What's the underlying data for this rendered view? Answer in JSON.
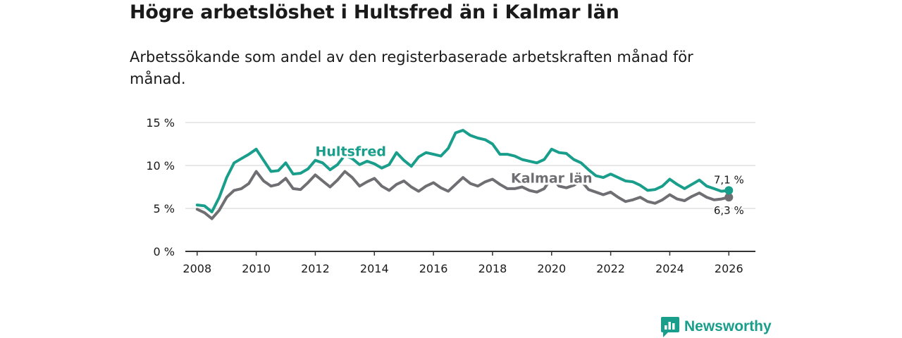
{
  "title": "Högre arbetslöshet i Hultsfred än i Kalmar län",
  "subtitle": "Arbetssökande som andel av den registerbaserade arbetskraften månad för månad.",
  "brand": {
    "name": "Newsworthy"
  },
  "colors": {
    "hultsfred": "#1a9e8c",
    "kalmar": "#6e6e73",
    "grid": "#d9d9d9",
    "axis": "#333333",
    "text": "#1a1a1a"
  },
  "chart_data": {
    "type": "line",
    "title": "Högre arbetslöshet i Hultsfred än i Kalmar län",
    "subtitle": "Arbetssökande som andel av den registerbaserade arbetskraften månad för månad.",
    "xlabel": "",
    "ylabel": "",
    "xlim": [
      2007.6,
      2026.9
    ],
    "ylim": [
      0,
      15
    ],
    "y_ticks": [
      0,
      5,
      10,
      15
    ],
    "y_tick_labels": [
      "0 %",
      "5 %",
      "10 %",
      "15 %"
    ],
    "x_ticks": [
      2008,
      2010,
      2012,
      2014,
      2016,
      2018,
      2020,
      2022,
      2024,
      2026
    ],
    "x_tick_labels": [
      "2008",
      "2010",
      "2012",
      "2014",
      "2016",
      "2018",
      "2020",
      "2022",
      "2024",
      "2026"
    ],
    "grid": true,
    "series": [
      {
        "name": "Hultsfred",
        "label": "Hultsfred",
        "end_label": "7,1 %",
        "end_value": 7.1,
        "color": "#1a9e8c",
        "x": [
          2008.0,
          2008.25,
          2008.5,
          2008.75,
          2009.0,
          2009.25,
          2009.5,
          2009.75,
          2010.0,
          2010.25,
          2010.5,
          2010.75,
          2011.0,
          2011.25,
          2011.5,
          2011.75,
          2012.0,
          2012.25,
          2012.5,
          2012.75,
          2013.0,
          2013.25,
          2013.5,
          2013.75,
          2014.0,
          2014.25,
          2014.5,
          2014.75,
          2015.0,
          2015.25,
          2015.5,
          2015.75,
          2016.0,
          2016.25,
          2016.5,
          2016.75,
          2017.0,
          2017.25,
          2017.5,
          2017.75,
          2018.0,
          2018.25,
          2018.5,
          2018.75,
          2019.0,
          2019.25,
          2019.5,
          2019.75,
          2020.0,
          2020.25,
          2020.5,
          2020.75,
          2021.0,
          2021.25,
          2021.5,
          2021.75,
          2022.0,
          2022.25,
          2022.5,
          2022.75,
          2023.0,
          2023.25,
          2023.5,
          2023.75,
          2024.0,
          2024.25,
          2024.5,
          2024.75,
          2025.0,
          2025.25,
          2025.5,
          2025.75,
          2026.0
        ],
        "values": [
          5.4,
          5.3,
          4.6,
          6.3,
          8.6,
          10.3,
          10.8,
          11.3,
          11.9,
          10.6,
          9.3,
          9.4,
          10.3,
          9.0,
          9.1,
          9.6,
          10.6,
          10.3,
          9.5,
          10.1,
          11.2,
          10.8,
          10.1,
          10.5,
          10.2,
          9.7,
          10.1,
          11.5,
          10.6,
          9.9,
          11.0,
          11.5,
          11.3,
          11.1,
          12.0,
          13.8,
          14.1,
          13.5,
          13.2,
          13.0,
          12.5,
          11.3,
          11.3,
          11.1,
          10.7,
          10.5,
          10.3,
          10.7,
          11.9,
          11.5,
          11.4,
          10.7,
          10.3,
          9.5,
          8.8,
          8.6,
          9.0,
          8.6,
          8.2,
          8.1,
          7.7,
          7.1,
          7.2,
          7.6,
          8.4,
          7.8,
          7.3,
          7.8,
          8.3,
          7.6,
          7.3,
          7.0,
          7.1
        ]
      },
      {
        "name": "Kalmar län",
        "label": "Kalmar län",
        "end_label": "6,3 %",
        "end_value": 6.3,
        "color": "#6e6e73",
        "x": [
          2008.0,
          2008.25,
          2008.5,
          2008.75,
          2009.0,
          2009.25,
          2009.5,
          2009.75,
          2010.0,
          2010.25,
          2010.5,
          2010.75,
          2011.0,
          2011.25,
          2011.5,
          2011.75,
          2012.0,
          2012.25,
          2012.5,
          2012.75,
          2013.0,
          2013.25,
          2013.5,
          2013.75,
          2014.0,
          2014.25,
          2014.5,
          2014.75,
          2015.0,
          2015.25,
          2015.5,
          2015.75,
          2016.0,
          2016.25,
          2016.5,
          2016.75,
          2017.0,
          2017.25,
          2017.5,
          2017.75,
          2018.0,
          2018.25,
          2018.5,
          2018.75,
          2019.0,
          2019.25,
          2019.5,
          2019.75,
          2020.0,
          2020.25,
          2020.5,
          2020.75,
          2021.0,
          2021.25,
          2021.5,
          2021.75,
          2022.0,
          2022.25,
          2022.5,
          2022.75,
          2023.0,
          2023.25,
          2023.5,
          2023.75,
          2024.0,
          2024.25,
          2024.5,
          2024.75,
          2025.0,
          2025.25,
          2025.5,
          2025.75,
          2026.0
        ],
        "values": [
          4.9,
          4.5,
          3.8,
          4.8,
          6.3,
          7.1,
          7.3,
          7.9,
          9.3,
          8.2,
          7.6,
          7.8,
          8.5,
          7.3,
          7.2,
          8.0,
          8.9,
          8.2,
          7.5,
          8.3,
          9.3,
          8.6,
          7.6,
          8.1,
          8.5,
          7.6,
          7.1,
          7.8,
          8.2,
          7.5,
          7.0,
          7.6,
          8.0,
          7.4,
          7.0,
          7.8,
          8.6,
          7.9,
          7.6,
          8.1,
          8.4,
          7.8,
          7.3,
          7.3,
          7.5,
          7.1,
          6.9,
          7.3,
          8.6,
          7.6,
          7.4,
          7.7,
          8.2,
          7.2,
          6.9,
          6.6,
          6.9,
          6.3,
          5.8,
          6.0,
          6.3,
          5.8,
          5.6,
          6.0,
          6.6,
          6.1,
          5.9,
          6.4,
          6.8,
          6.3,
          6.0,
          6.1,
          6.3
        ]
      }
    ]
  }
}
